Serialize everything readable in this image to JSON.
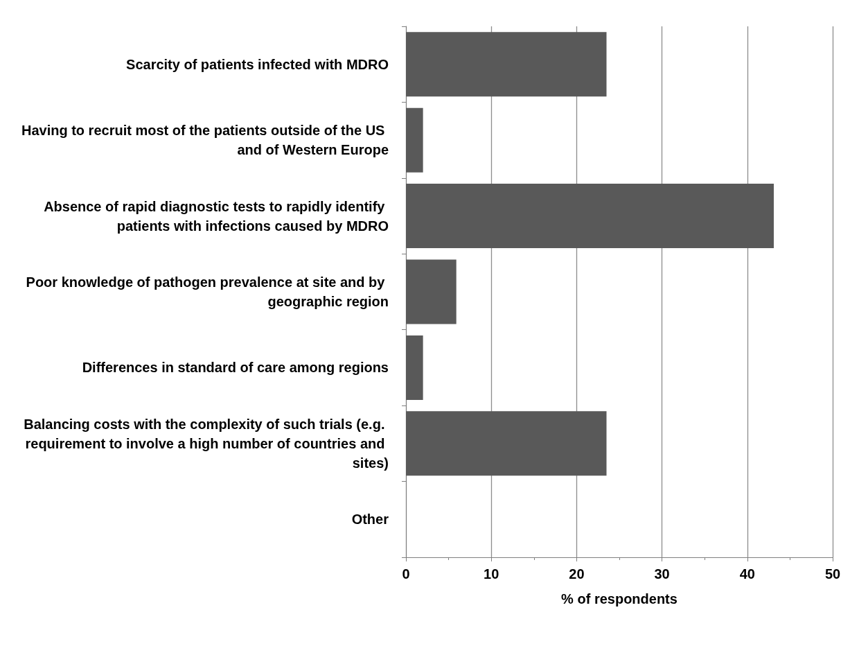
{
  "chart_data": {
    "type": "bar",
    "orientation": "horizontal",
    "xlabel": "% of respondents",
    "categories": [
      "Scarcity of patients infected with MDRO",
      "Having to recruit most of the patients outside of the US and of Western Europe",
      "Absence of rapid diagnostic tests to rapidly identify patients with infections caused by MDRO",
      "Poor knowledge of pathogen prevalence at site and by geographic region",
      "Differences in standard of care among regions",
      "Balancing costs with the complexity of such trials (e.g. requirement to involve a high number of countries and sites)",
      "Other"
    ],
    "values": [
      23.5,
      2,
      43.1,
      5.9,
      2,
      23.5,
      0
    ],
    "color": "#595959",
    "xlim": [
      0,
      50
    ],
    "xticks": [
      0,
      10,
      20,
      30,
      40,
      50
    ],
    "grid": "x"
  }
}
